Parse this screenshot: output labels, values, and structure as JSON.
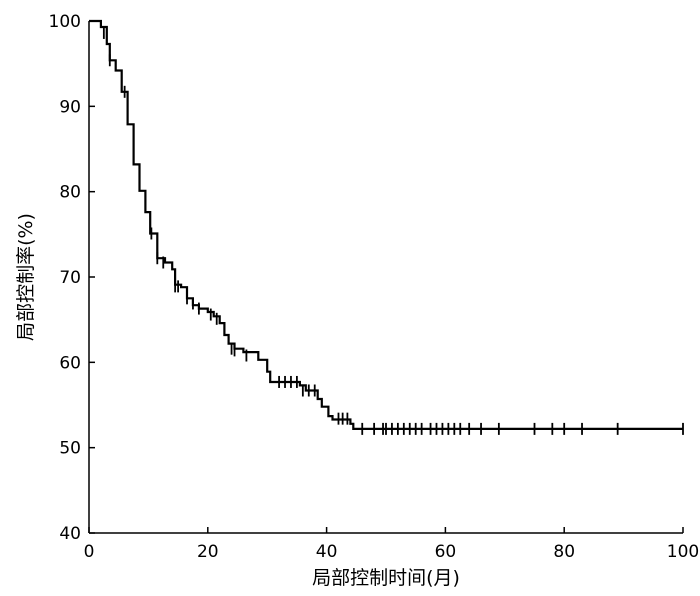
{
  "chart_data": {
    "type": "line",
    "title": "",
    "xlabel": "局部控制时间(月)",
    "ylabel": "局部控制率(%)",
    "xlim": [
      0,
      100
    ],
    "ylim": [
      40,
      100
    ],
    "x_ticks": [
      0,
      20,
      40,
      60,
      80,
      100
    ],
    "y_ticks": [
      40,
      50,
      60,
      70,
      80,
      90,
      100
    ],
    "x_tick_labels": [
      "0",
      "20",
      "40",
      "60",
      "80",
      "100"
    ],
    "y_tick_labels": [
      "40",
      "50",
      "60",
      "70",
      "80",
      "90",
      "100"
    ],
    "grid": false,
    "legend": "none",
    "series": [
      {
        "style": "step-after",
        "color": "#000000",
        "points": [
          [
            0,
            100
          ],
          [
            2,
            99.3
          ],
          [
            3,
            97.3
          ],
          [
            3.5,
            95.4
          ],
          [
            4.5,
            94.2
          ],
          [
            5.5,
            91.7
          ],
          [
            6.5,
            87.9
          ],
          [
            7.5,
            83.2
          ],
          [
            8.5,
            80.1
          ],
          [
            9.5,
            77.6
          ],
          [
            10.3,
            75.1
          ],
          [
            11.5,
            72.2
          ],
          [
            12.8,
            71.7
          ],
          [
            14,
            70.9
          ],
          [
            14.5,
            69.1
          ],
          [
            15.5,
            68.8
          ],
          [
            16.5,
            67.5
          ],
          [
            17.5,
            66.7
          ],
          [
            18.5,
            66.3
          ],
          [
            20,
            65.9
          ],
          [
            21,
            65.4
          ],
          [
            22,
            64.6
          ],
          [
            22.8,
            63.2
          ],
          [
            23.5,
            62.2
          ],
          [
            24.5,
            61.6
          ],
          [
            26,
            61.2
          ],
          [
            28.5,
            60.3
          ],
          [
            30,
            58.9
          ],
          [
            30.5,
            57.7
          ],
          [
            35.5,
            57.3
          ],
          [
            36.5,
            56.7
          ],
          [
            38.5,
            55.7
          ],
          [
            39.2,
            54.8
          ],
          [
            40.3,
            53.7
          ],
          [
            41,
            53.3
          ],
          [
            44,
            52.8
          ],
          [
            44.5,
            52.2
          ],
          [
            100,
            52.2
          ]
        ],
        "censored": [
          [
            2.5,
            98.6
          ],
          [
            3.5,
            95.4
          ],
          [
            6,
            91.7
          ],
          [
            10.5,
            75.1
          ],
          [
            11.5,
            72.2
          ],
          [
            12.5,
            71.7
          ],
          [
            14.5,
            68.9
          ],
          [
            15,
            68.9
          ],
          [
            16.5,
            67.5
          ],
          [
            17.5,
            66.9
          ],
          [
            18.5,
            66.3
          ],
          [
            20.5,
            65.6
          ],
          [
            21.5,
            65.1
          ],
          [
            24,
            61.6
          ],
          [
            24.5,
            61.4
          ],
          [
            26.5,
            60.8
          ],
          [
            32,
            57.7
          ],
          [
            33,
            57.7
          ],
          [
            34,
            57.7
          ],
          [
            35,
            57.7
          ],
          [
            36,
            56.7
          ],
          [
            37,
            56.7
          ],
          [
            38,
            56.7
          ],
          [
            42,
            53.4
          ],
          [
            42.7,
            53.4
          ],
          [
            43.5,
            53.4
          ],
          [
            46,
            52.2
          ],
          [
            48,
            52.2
          ],
          [
            49.5,
            52.2
          ],
          [
            50,
            52.2
          ],
          [
            51,
            52.2
          ],
          [
            52,
            52.2
          ],
          [
            53,
            52.2
          ],
          [
            54,
            52.2
          ],
          [
            55,
            52.2
          ],
          [
            56,
            52.2
          ],
          [
            57.5,
            52.2
          ],
          [
            58.5,
            52.2
          ],
          [
            59.5,
            52.2
          ],
          [
            60.5,
            52.2
          ],
          [
            61.5,
            52.2
          ],
          [
            62.5,
            52.2
          ],
          [
            64,
            52.2
          ],
          [
            66,
            52.2
          ],
          [
            69,
            52.2
          ],
          [
            75,
            52.2
          ],
          [
            78,
            52.2
          ],
          [
            80,
            52.2
          ],
          [
            83,
            52.2
          ],
          [
            89,
            52.2
          ],
          [
            100,
            52.2
          ]
        ]
      }
    ]
  }
}
